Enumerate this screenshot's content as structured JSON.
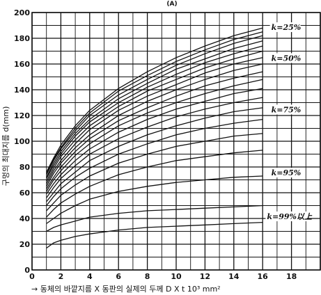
{
  "chart_data": {
    "type": "line",
    "title": "(A)",
    "xlabel": "→ 동체의 바깥지름 X 동판의 실제의 두께  D X t  10³ mm²",
    "ylabel": "구멍의 최대지름 d(mm)",
    "xlim": [
      0,
      20
    ],
    "ylim": [
      0,
      200
    ],
    "x_ticks": [
      0,
      2,
      4,
      6,
      8,
      10,
      12,
      14,
      16,
      18
    ],
    "y_ticks": [
      0,
      20,
      40,
      60,
      80,
      100,
      120,
      140,
      160,
      180,
      200
    ],
    "grid": true,
    "x": [
      1,
      1.5,
      2,
      3,
      4,
      6,
      8,
      10,
      12,
      14,
      16
    ],
    "series": [
      {
        "values": [
          76,
          87,
          97,
          112,
          124,
          141,
          154,
          165,
          174,
          182,
          188
        ]
      },
      {
        "values": [
          75,
          86,
          95,
          110,
          122,
          139,
          151,
          162,
          171,
          179,
          185
        ]
      },
      {
        "values": [
          74,
          85,
          94,
          108,
          120,
          136,
          148,
          159,
          168,
          176,
          182
        ]
      },
      {
        "values": [
          72,
          83,
          92,
          106,
          117,
          133,
          145,
          156,
          164,
          172,
          178
        ]
      },
      {
        "values": [
          71,
          81,
          90,
          104,
          115,
          130,
          142,
          152,
          161,
          168,
          174
        ]
      },
      {
        "values": [
          69,
          79,
          88,
          101,
          112,
          127,
          139,
          148,
          157,
          164,
          170
        ]
      },
      {
        "values": [
          67,
          77,
          85,
          98,
          109,
          124,
          135,
          144,
          153,
          160,
          165
        ]
      },
      {
        "values": [
          65,
          75,
          83,
          95,
          105,
          120,
          131,
          140,
          148,
          155,
          160
        ]
      },
      {
        "values": [
          63,
          72,
          80,
          92,
          102,
          116,
          126,
          135,
          143,
          149,
          154
        ]
      },
      {
        "values": [
          61,
          70,
          77,
          89,
          98,
          112,
          122,
          130,
          137,
          143,
          148
        ]
      },
      {
        "values": [
          59,
          67,
          74,
          85,
          94,
          107,
          117,
          125,
          131,
          137,
          141
        ]
      },
      {
        "values": [
          56,
          64,
          71,
          81,
          90,
          102,
          111,
          119,
          125,
          130,
          134
        ]
      },
      {
        "values": [
          53,
          60,
          67,
          76,
          85,
          96,
          105,
          112,
          118,
          123,
          126
        ]
      },
      {
        "values": [
          50,
          57,
          63,
          72,
          79,
          90,
          98,
          105,
          110,
          114,
          117
        ]
      },
      {
        "values": [
          46,
          52,
          58,
          66,
          73,
          83,
          90,
          96,
          100,
          104,
          106
        ]
      },
      {
        "values": [
          41,
          47,
          52,
          59,
          65,
          74,
          80,
          85,
          88,
          91,
          93
        ]
      },
      {
        "values": [
          36,
          40,
          44,
          50,
          55,
          61,
          65,
          68,
          70,
          72,
          73
        ]
      },
      {
        "values": [
          30,
          33,
          35,
          38,
          41,
          44,
          46,
          47,
          48,
          49,
          50
        ]
      },
      {
        "values": [
          17,
          21,
          23,
          26,
          28,
          31,
          33,
          34,
          35,
          36,
          37
        ]
      }
    ],
    "annotations": [
      {
        "text": "k=25%",
        "x": 16.6,
        "y": 187
      },
      {
        "text": "k=50%",
        "x": 16.6,
        "y": 163
      },
      {
        "text": "k=75%",
        "x": 16.6,
        "y": 123
      },
      {
        "text": "k=95%",
        "x": 16.6,
        "y": 74
      },
      {
        "text": "k=99%以上",
        "x": 16.3,
        "y": 40
      }
    ]
  }
}
